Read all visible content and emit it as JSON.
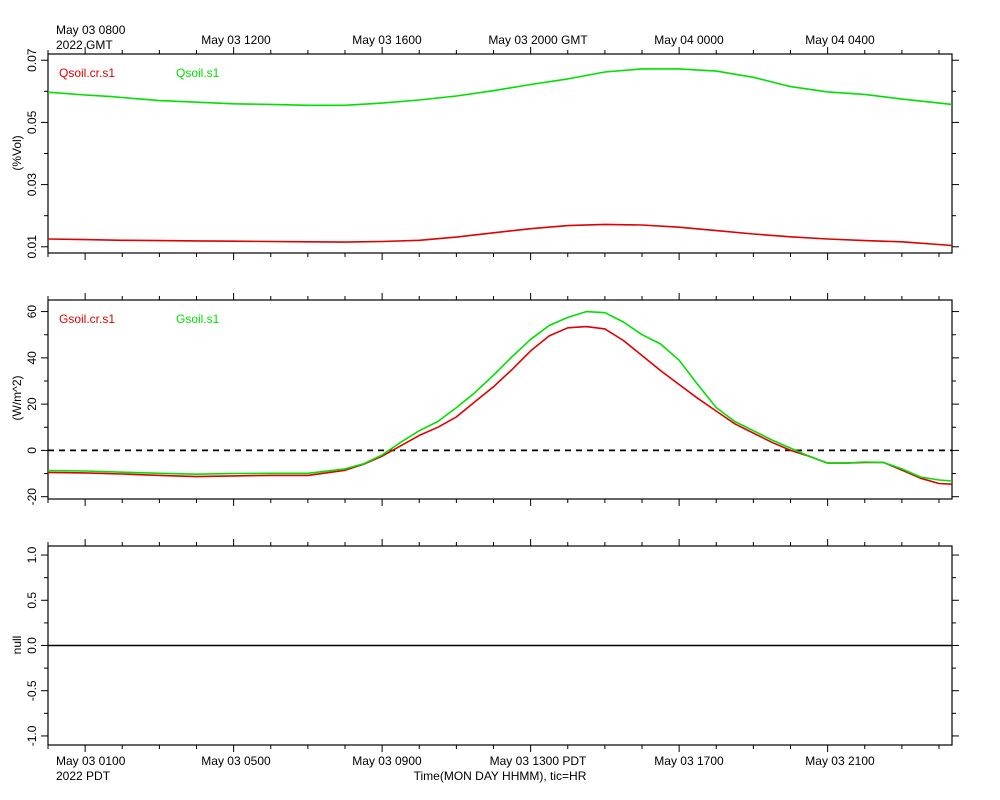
{
  "top_time_axis": {
    "first_label_line1": "May 03 0800",
    "first_label_line2": "2022 GMT",
    "labels": [
      "May 03 1200",
      "May 03 1600",
      "May 03 2000 GMT",
      "May 04 0000",
      "May 04 0400"
    ]
  },
  "bottom_time_axis": {
    "first_label_line1": "May 03 0100",
    "first_label_line2": "2022 PDT",
    "labels": [
      "May 03 0500",
      "May 03 0900",
      "May 03 1300 PDT",
      "May 03 1700",
      "May 03 2100"
    ],
    "title": "Time(MON DAY HHMM), tic=HR"
  },
  "colors": {
    "red": "#e00000",
    "green": "#00e000",
    "axis": "#000000",
    "zero_line": "#000000"
  },
  "chart_data": [
    {
      "type": "line",
      "ylabel": "(%Vol)",
      "ylim": [
        0.008,
        0.072
      ],
      "yticks": [
        0.01,
        0.03,
        0.05,
        0.07
      ],
      "ytick_labels": [
        "0.01",
        "0.03",
        "0.05",
        "0.07"
      ],
      "x_unit": "hours since May 03 0100 PDT",
      "xlim": [
        -1,
        23.35
      ],
      "series": [
        {
          "name": "Qsoil.cr.s1",
          "color": "#e00000",
          "x": [
            -1,
            0,
            1,
            2,
            3,
            4,
            5,
            6,
            7,
            8,
            9,
            10,
            11,
            12,
            13,
            14,
            15,
            16,
            17,
            18,
            19,
            20,
            21,
            22,
            23.35
          ],
          "y": [
            0.0125,
            0.0123,
            0.0121,
            0.012,
            0.0119,
            0.0118,
            0.0117,
            0.0116,
            0.0115,
            0.0117,
            0.0121,
            0.0131,
            0.0145,
            0.0158,
            0.0168,
            0.0172,
            0.017,
            0.0163,
            0.0152,
            0.0141,
            0.0132,
            0.0125,
            0.012,
            0.0116,
            0.0104
          ]
        },
        {
          "name": "Qsoil.s1",
          "color": "#00e000",
          "x": [
            -1,
            0,
            0.7,
            1,
            2,
            3,
            4,
            5,
            6,
            7,
            8,
            9,
            10,
            11,
            12,
            13,
            14,
            15,
            16,
            17,
            18,
            19,
            20,
            21,
            22,
            23.35
          ],
          "y": [
            0.0597,
            0.0588,
            0.0583,
            0.058,
            0.057,
            0.0565,
            0.056,
            0.0558,
            0.0555,
            0.0555,
            0.0562,
            0.0572,
            0.0585,
            0.0602,
            0.0622,
            0.064,
            0.0662,
            0.0672,
            0.0672,
            0.0665,
            0.0645,
            0.0615,
            0.0598,
            0.059,
            0.0575,
            0.0558
          ]
        }
      ]
    },
    {
      "type": "line",
      "ylabel": "(W/m^2)",
      "ylim": [
        -21,
        65
      ],
      "yticks": [
        -20,
        0,
        20,
        40,
        60
      ],
      "ytick_labels": [
        "-20",
        "0",
        "20",
        "40",
        "60"
      ],
      "x_unit": "hours since May 03 0100 PDT",
      "xlim": [
        -1,
        23.35
      ],
      "reference_line": {
        "y": 0,
        "style": "dashed"
      },
      "series": [
        {
          "name": "Gsoil.cr.s1",
          "color": "#e00000",
          "x": [
            -1,
            0,
            1,
            2,
            3,
            4,
            5,
            6,
            7,
            7.5,
            8,
            8.5,
            9,
            9.5,
            10,
            10.5,
            11,
            11.5,
            12,
            12.5,
            13,
            13.5,
            14,
            14.5,
            15,
            15.5,
            16,
            16.5,
            17,
            17.5,
            18,
            18.5,
            19,
            19.5,
            20,
            20.5,
            21,
            21.5,
            22,
            22.5,
            23,
            23.35
          ],
          "y": [
            -9.5,
            -9.7,
            -10.2,
            -10.8,
            -11.3,
            -11.0,
            -10.8,
            -10.8,
            -8.6,
            -6.0,
            -2.5,
            2.0,
            6.5,
            10.0,
            14.5,
            21.0,
            27.5,
            35.0,
            43.0,
            49.5,
            53.0,
            53.5,
            52.5,
            47.5,
            41.0,
            34.5,
            28.5,
            22.5,
            17.0,
            11.5,
            7.5,
            3.5,
            0.0,
            -2.5,
            -5.5,
            -5.5,
            -5.2,
            -5.2,
            -8.5,
            -12.0,
            -14.3,
            -14.6
          ]
        },
        {
          "name": "Gsoil.s1",
          "color": "#00e000",
          "x": [
            -1,
            0,
            1,
            2,
            3,
            4,
            5,
            6,
            7,
            7.5,
            8,
            8.5,
            9,
            9.5,
            10,
            10.5,
            11,
            11.5,
            12,
            12.5,
            13,
            13.5,
            14,
            14.5,
            15,
            15.5,
            16,
            16.5,
            17,
            17.5,
            18,
            18.5,
            19,
            19.5,
            20,
            20.5,
            21,
            21.5,
            22,
            22.5,
            23,
            23.35
          ],
          "y": [
            -8.7,
            -8.9,
            -9.4,
            -9.9,
            -10.3,
            -10.0,
            -9.9,
            -9.9,
            -8.0,
            -5.8,
            -2.0,
            3.5,
            8.5,
            12.5,
            18.5,
            25.0,
            32.5,
            40.5,
            48.0,
            54.0,
            57.5,
            60.0,
            59.5,
            55.5,
            50.0,
            46.0,
            39.0,
            28.5,
            18.5,
            12.5,
            8.5,
            4.5,
            1.0,
            -2.5,
            -5.5,
            -5.5,
            -5.0,
            -5.2,
            -8.0,
            -11.5,
            -12.8,
            -13.2
          ]
        }
      ]
    },
    {
      "type": "line",
      "ylabel": "null",
      "ylim": [
        -1.1,
        1.1
      ],
      "yticks": [
        -1.0,
        -0.5,
        0.0,
        0.5,
        1.0
      ],
      "ytick_labels": [
        "-1.0",
        "-0.5",
        "0.0",
        "0.5",
        "1.0"
      ],
      "x_unit": "hours since May 03 0100 PDT",
      "xlim": [
        -1,
        23.35
      ],
      "series": [
        {
          "color": "#000000",
          "x": [
            -1,
            23.35
          ],
          "y": [
            0,
            0
          ]
        }
      ]
    }
  ]
}
